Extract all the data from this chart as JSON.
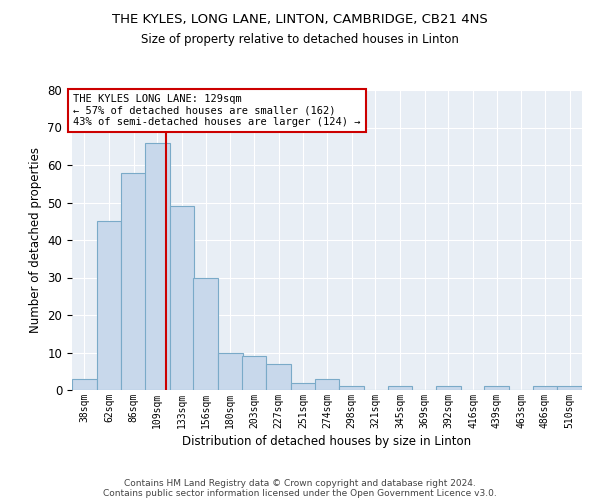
{
  "title1": "THE KYLES, LONG LANE, LINTON, CAMBRIDGE, CB21 4NS",
  "title2": "Size of property relative to detached houses in Linton",
  "xlabel": "Distribution of detached houses by size in Linton",
  "ylabel": "Number of detached properties",
  "bar_color": "#c8d8eb",
  "bar_edge_color": "#7aaac8",
  "vline_color": "#cc0000",
  "vline_x": 129,
  "categories": [
    "38sqm",
    "62sqm",
    "86sqm",
    "109sqm",
    "133sqm",
    "156sqm",
    "180sqm",
    "203sqm",
    "227sqm",
    "251sqm",
    "274sqm",
    "298sqm",
    "321sqm",
    "345sqm",
    "369sqm",
    "392sqm",
    "416sqm",
    "439sqm",
    "463sqm",
    "486sqm",
    "510sqm"
  ],
  "bin_edges": [
    38,
    62,
    86,
    109,
    133,
    156,
    180,
    203,
    227,
    251,
    274,
    298,
    321,
    345,
    369,
    392,
    416,
    439,
    463,
    486,
    510
  ],
  "bin_width": 24,
  "values": [
    3,
    45,
    58,
    66,
    49,
    30,
    10,
    9,
    7,
    2,
    3,
    1,
    0,
    1,
    0,
    1,
    0,
    1,
    0,
    1,
    1
  ],
  "ylim": [
    0,
    80
  ],
  "yticks": [
    0,
    10,
    20,
    30,
    40,
    50,
    60,
    70,
    80
  ],
  "annotation_line1": "THE KYLES LONG LANE: 129sqm",
  "annotation_line2": "← 57% of detached houses are smaller (162)",
  "annotation_line3": "43% of semi-detached houses are larger (124) →",
  "bg_color": "#e8eef5",
  "grid_color": "#ffffff",
  "footer1": "Contains HM Land Registry data © Crown copyright and database right 2024.",
  "footer2": "Contains public sector information licensed under the Open Government Licence v3.0."
}
